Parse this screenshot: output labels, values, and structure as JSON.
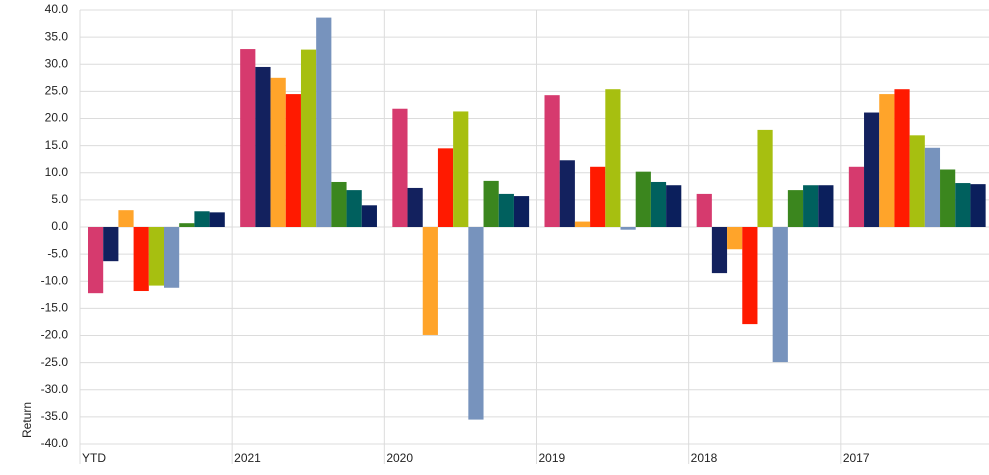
{
  "chart_data": {
    "type": "bar",
    "y_label": "Return",
    "categories": [
      "YTD",
      "2021",
      "2020",
      "2019",
      "2018",
      "2017"
    ],
    "series": [
      {
        "color": "#d63a6e",
        "values": [
          -12.2,
          32.8,
          21.8,
          24.3,
          6.1,
          11.1
        ]
      },
      {
        "color": "#13215e",
        "values": [
          -6.3,
          29.5,
          7.2,
          12.3,
          -8.5,
          21.1
        ]
      },
      {
        "color": "#ffa42a",
        "values": [
          3.1,
          27.5,
          -19.9,
          1.0,
          -4.1,
          24.5
        ]
      },
      {
        "color": "#ff1a00",
        "values": [
          -11.8,
          24.5,
          14.5,
          11.1,
          -17.9,
          25.4
        ]
      },
      {
        "color": "#a7bf10",
        "values": [
          -10.8,
          32.7,
          21.3,
          25.4,
          17.9,
          16.9
        ]
      },
      {
        "color": "#7793bd",
        "values": [
          -11.2,
          38.6,
          -35.5,
          -0.5,
          -24.9,
          14.6
        ]
      },
      {
        "color": "#3b861e",
        "values": [
          0.7,
          8.3,
          8.5,
          10.2,
          6.8,
          10.6
        ]
      },
      {
        "color": "#00605e",
        "values": [
          2.9,
          6.8,
          6.1,
          8.3,
          7.7,
          8.1
        ]
      },
      {
        "color": "#0b1f5c",
        "values": [
          2.7,
          4.0,
          5.7,
          7.7,
          7.7,
          7.9
        ]
      }
    ],
    "ylim": [
      -40,
      40
    ],
    "yticks": [
      {
        "value": -40,
        "label": "-40.0"
      },
      {
        "value": -35,
        "label": "-35.0"
      },
      {
        "value": -30,
        "label": "-30.0"
      },
      {
        "value": -25,
        "label": "-25.0"
      },
      {
        "value": -20,
        "label": "-20.0"
      },
      {
        "value": -15,
        "label": "-15.0"
      },
      {
        "value": -10,
        "label": "-10.0"
      },
      {
        "value": -5,
        "label": "-5.0"
      },
      {
        "value": 0,
        "label": "0.0"
      },
      {
        "value": 5,
        "label": "5.0"
      },
      {
        "value": 10,
        "label": "10.0"
      },
      {
        "value": 15,
        "label": "15.0"
      },
      {
        "value": 20,
        "label": "20.0"
      },
      {
        "value": 25,
        "label": "25.0"
      },
      {
        "value": 30,
        "label": "30.0"
      },
      {
        "value": 35,
        "label": "35.0"
      },
      {
        "value": 40,
        "label": "40.0"
      }
    ],
    "grid": true
  }
}
